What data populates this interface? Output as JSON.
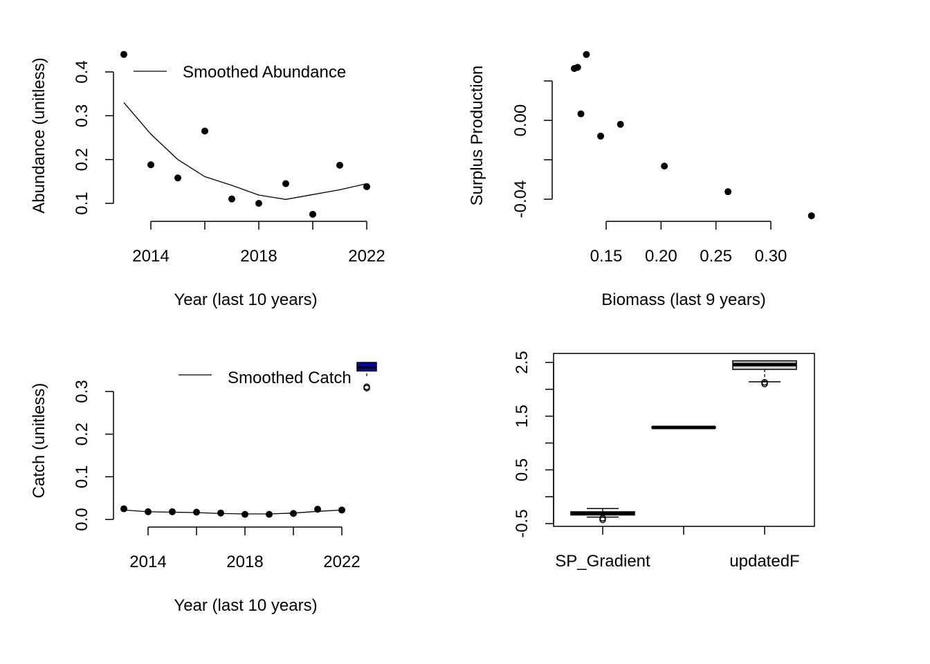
{
  "chart_data": [
    {
      "type": "scatter",
      "xlabel": "Year (last 10 years)",
      "ylabel": "Abundance (unitless)",
      "xlim": [
        2012.9,
        2022.1
      ],
      "ylim": [
        0.07,
        0.44
      ],
      "x_ticks": [
        2014,
        2016,
        2018,
        2020,
        2022
      ],
      "x_tick_labels": [
        "2014",
        "",
        "2018",
        "",
        "2022"
      ],
      "y_ticks": [
        0.1,
        0.2,
        0.3,
        0.4
      ],
      "y_tick_labels": [
        "0.1",
        "0.2",
        "0.3",
        "0.4"
      ],
      "legend": {
        "position": "top",
        "entries": [
          "Smoothed Abundance"
        ]
      },
      "series": [
        {
          "name": "",
          "kind": "points",
          "x": [
            2013,
            2014,
            2015,
            2016,
            2017,
            2018,
            2019,
            2020,
            2021,
            2022
          ],
          "y": [
            0.44,
            0.188,
            0.158,
            0.265,
            0.11,
            0.1,
            0.145,
            0.075,
            0.187,
            0.138
          ]
        },
        {
          "name": "Smoothed Abundance",
          "kind": "line",
          "x": [
            2013,
            2014,
            2015,
            2016,
            2017,
            2018,
            2019,
            2020,
            2021,
            2022
          ],
          "y": [
            0.33,
            0.258,
            0.2,
            0.161,
            0.141,
            0.119,
            0.109,
            0.12,
            0.131,
            0.145
          ]
        }
      ]
    },
    {
      "type": "scatter",
      "xlabel": "Biomass (last 9 years)",
      "ylabel": "Surplus Production",
      "xlim": [
        0.115,
        0.335
      ],
      "ylim": [
        -0.0475,
        0.0334
      ],
      "x_ticks": [
        0.15,
        0.2,
        0.25,
        0.3
      ],
      "x_tick_labels": [
        "0.15",
        "0.20",
        "0.25",
        "0.30"
      ],
      "y_ticks": [
        -0.04,
        -0.02,
        0.0,
        0.02
      ],
      "y_tick_labels": [
        "-0.04",
        "",
        "0.00",
        ""
      ],
      "series": [
        {
          "name": "",
          "kind": "points",
          "x": [
            0.337,
            0.261,
            0.203,
            0.127,
            0.163,
            0.145,
            0.121,
            0.124,
            0.132
          ],
          "y": [
            -0.0484,
            -0.0362,
            -0.0232,
            0.0033,
            -0.002,
            -0.008,
            0.0263,
            0.0269,
            0.0334
          ]
        }
      ]
    },
    {
      "type": "scatter",
      "xlabel": "Year (last 10 years)",
      "ylabel": "Catch (unitless)",
      "xlim": [
        2012.9,
        2022.1
      ],
      "ylim": [
        0.0,
        0.36
      ],
      "x_ticks": [
        2014,
        2016,
        2018,
        2020,
        2022
      ],
      "x_tick_labels": [
        "2014",
        "",
        "2018",
        "",
        "2022"
      ],
      "y_ticks": [
        0.0,
        0.1,
        0.2,
        0.3
      ],
      "y_tick_labels": [
        "0.0",
        "0.1",
        "0.2",
        "0.3"
      ],
      "legend": {
        "position": "top",
        "entries": [
          "Smoothed Catch"
        ]
      },
      "series": [
        {
          "name": "",
          "kind": "points",
          "x": [
            2013,
            2014,
            2015,
            2016,
            2017,
            2018,
            2019,
            2020,
            2021,
            2022
          ],
          "y": [
            0.025,
            0.018,
            0.018,
            0.017,
            0.015,
            0.012,
            0.012,
            0.014,
            0.024,
            0.022
          ]
        },
        {
          "name": "Smoothed Catch",
          "kind": "line",
          "x": [
            2013,
            2014,
            2015,
            2016,
            2017,
            2018,
            2019,
            2020,
            2021,
            2022
          ],
          "y": [
            0.022,
            0.018,
            0.017,
            0.016,
            0.014,
            0.013,
            0.013,
            0.015,
            0.019,
            0.022
          ]
        }
      ],
      "overlay_box": {
        "x": 2022,
        "q1": 0.348,
        "median": 0.357,
        "q3": 0.368,
        "whisker_low": 0.336,
        "whisker_high": 0.37,
        "outliers": [
          0.308,
          0.311
        ],
        "fill": "#0000cc"
      }
    },
    {
      "type": "box",
      "categories": [
        "SP_Gradient",
        "",
        "updatedF"
      ],
      "x_tick_labels": [
        "SP_Gradient",
        "",
        "updatedF"
      ],
      "ylim": [
        -0.5,
        2.65
      ],
      "y_ticks": [
        -0.5,
        0.0,
        0.5,
        1.0,
        1.5,
        2.0,
        2.5
      ],
      "y_tick_labels": [
        "-0.5",
        "",
        "0.5",
        "",
        "1.5",
        "",
        "2.5"
      ],
      "boxes": [
        {
          "q1": -0.34,
          "median": -0.31,
          "q3": -0.28,
          "whisker_low": -0.38,
          "whisker_high": -0.22,
          "outliers": [
            -0.4,
            -0.43
          ]
        },
        {
          "q1": 1.28,
          "median": 1.29,
          "q3": 1.3,
          "whisker_low": 1.28,
          "whisker_high": 1.3,
          "outliers": []
        },
        {
          "q1": 2.37,
          "median": 2.46,
          "q3": 2.53,
          "whisker_low": 2.14,
          "whisker_high": 2.53,
          "outliers": [
            2.1,
            2.13
          ]
        }
      ],
      "fill": "#d3d3d3"
    }
  ]
}
